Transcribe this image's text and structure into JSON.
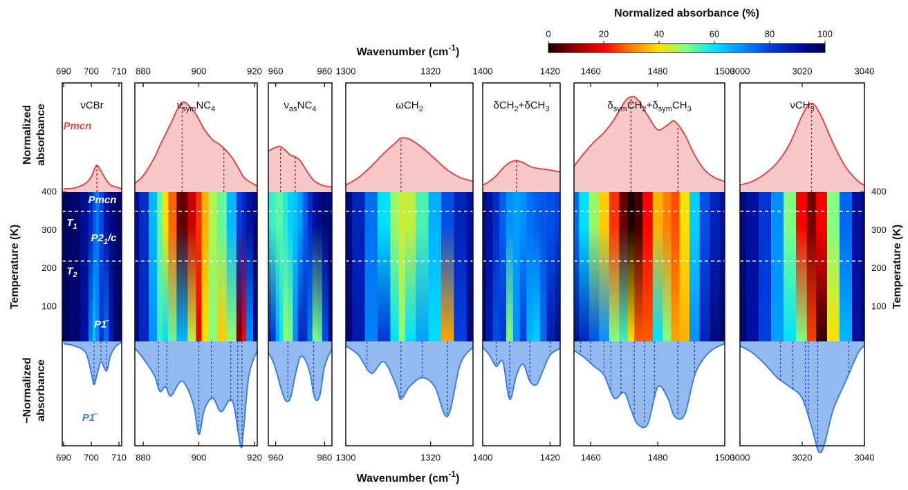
{
  "chart_data": {
    "type": "spectral-heatmap",
    "x_title": [
      "Wavenumber (cm",
      "-1",
      ")"
    ],
    "y_title": "Temperature (K)",
    "top_ylabel": [
      "Normalized",
      "absorbance"
    ],
    "bottom_ylabel": [
      "−Normalized",
      "absorbance"
    ],
    "ylim": [
      10,
      400
    ],
    "yticks": [
      100,
      200,
      300,
      400
    ],
    "transitions": [
      350,
      220
    ],
    "top_ylim": [
      0,
      100
    ],
    "bottom_ylim": [
      -100,
      0
    ],
    "top_color": "#e04848",
    "bottom_color": "#3b7fe0",
    "top_phase": "Pmcn",
    "bottom_phase": "P1̄",
    "heatmap_labels": [
      [
        "Pmcn"
      ],
      [
        "T",
        "1"
      ],
      [
        "P2",
        "1",
        "/c"
      ],
      [
        "T",
        "2"
      ],
      [
        "P1̄"
      ]
    ],
    "colorbar": {
      "title": "Normalized absorbance (%)",
      "lim": [
        0,
        100
      ],
      "ticks": [
        0,
        20,
        40,
        60,
        80,
        100
      ],
      "colors": [
        "#1a0000",
        "#990000",
        "#ff0000",
        "#ff8000",
        "#ffe000",
        "#80ff80",
        "#00e0ff",
        "#0090ff",
        "#0040e0",
        "#0010a0",
        "#000050"
      ]
    },
    "panels": [
      {
        "label": [
          "νCBr"
        ],
        "xlim": [
          689.5,
          711
        ],
        "xticks": [
          690,
          700,
          710
        ],
        "x": [
          690,
          694,
          698,
          700,
          701,
          702,
          703.5,
          705.5,
          707,
          709,
          711
        ],
        "top": [
          2,
          3,
          8,
          15,
          22,
          27,
          21,
          11,
          6,
          4,
          2
        ],
        "bottom": [
          -2,
          -4,
          -10,
          -28,
          -38,
          -30,
          -18,
          -26,
          -12,
          -4,
          -1
        ],
        "top_peaks": [
          702
        ],
        "bottom_peaks": [
          701,
          703.5,
          705.5
        ]
      },
      {
        "label": [
          "ν",
          "sym",
          "NC",
          "4"
        ],
        "xlim": [
          877,
          921
        ],
        "xticks": [
          880,
          900,
          920
        ],
        "x": [
          877,
          880,
          884,
          886,
          888,
          890,
          894,
          898,
          900,
          902,
          905,
          908,
          912,
          915,
          916,
          918,
          921
        ],
        "top": [
          8,
          16,
          35,
          48,
          60,
          72,
          94,
          85,
          76,
          65,
          54,
          48,
          35,
          20,
          15,
          10,
          5
        ],
        "bottom": [
          -6,
          -15,
          -30,
          -44,
          -40,
          -48,
          -35,
          -55,
          -82,
          -60,
          -50,
          -62,
          -52,
          -92,
          -80,
          -30,
          -8
        ],
        "top_peaks": [
          894,
          909
        ],
        "bottom_peaks": [
          885.5,
          888.5,
          900,
          904.5,
          911.5,
          914,
          915.5
        ]
      },
      {
        "label": [
          "ν",
          "as",
          "NC",
          "4"
        ],
        "xlim": [
          957,
          983
        ],
        "xticks": [
          960,
          980
        ],
        "x": [
          957,
          959,
          961,
          962,
          964,
          966,
          968,
          970,
          972,
          974,
          976,
          978,
          980,
          983
        ],
        "top": [
          42,
          45,
          47,
          47,
          43,
          38,
          36,
          32,
          24,
          16,
          10,
          7,
          5,
          4
        ],
        "bottom": [
          -10,
          -18,
          -32,
          -40,
          -52,
          -50,
          -30,
          -14,
          -16,
          -28,
          -50,
          -48,
          -22,
          -6
        ],
        "top_peaks": [
          962,
          968
        ],
        "bottom_peaks": [
          965,
          975.5
        ]
      },
      {
        "label": [
          "ωCH",
          "2"
        ],
        "xlim": [
          1300,
          1330
        ],
        "xticks": [
          1300,
          1320
        ],
        "x": [
          1300,
          1303,
          1306,
          1309,
          1312,
          1313,
          1315,
          1318,
          1321,
          1324,
          1327,
          1330
        ],
        "top": [
          6,
          14,
          26,
          40,
          52,
          56,
          55,
          46,
          34,
          22,
          14,
          10
        ],
        "bottom": [
          -4,
          -12,
          -28,
          -18,
          -40,
          -51,
          -40,
          -32,
          -40,
          -66,
          -20,
          -5
        ],
        "top_peaks": [
          1313
        ],
        "bottom_peaks": [
          1305,
          1313,
          1318,
          1324
        ]
      },
      {
        "label": [
          "δCH",
          "2",
          "+δCH",
          "3"
        ],
        "xlim": [
          1400,
          1423
        ],
        "xticks": [
          1400,
          1420
        ],
        "x": [
          1400,
          1402,
          1404,
          1406,
          1408,
          1410,
          1412,
          1414,
          1416,
          1418,
          1420,
          1423
        ],
        "top": [
          6,
          10,
          16,
          24,
          30,
          32,
          30,
          26,
          24,
          23,
          22,
          20
        ],
        "bottom": [
          -5,
          -12,
          -22,
          -18,
          -51,
          -30,
          -20,
          -35,
          -38,
          -25,
          -12,
          -6
        ],
        "top_peaks": [
          1410
        ],
        "bottom_peaks": [
          1404,
          1408,
          1414,
          1420
        ]
      },
      {
        "label": [
          "δ",
          "sym",
          "CH",
          "2",
          "+δ",
          "sym",
          "CH",
          "3"
        ],
        "xlim": [
          1455,
          1500
        ],
        "xticks": [
          1460,
          1480,
          1500
        ],
        "x": [
          1455,
          1458,
          1461,
          1464,
          1467,
          1470,
          1472,
          1474,
          1477,
          1480,
          1483,
          1485,
          1488,
          1491,
          1494,
          1497,
          1500
        ],
        "top": [
          26,
          40,
          52,
          62,
          76,
          94,
          100,
          97,
          80,
          65,
          70,
          74,
          60,
          38,
          22,
          14,
          10
        ],
        "bottom": [
          -8,
          -14,
          -22,
          -30,
          -50,
          -45,
          -60,
          -73,
          -73,
          -40,
          -50,
          -66,
          -65,
          -30,
          -14,
          -6,
          -2
        ],
        "top_peaks": [
          1472,
          1486
        ],
        "bottom_peaks": [
          1457,
          1460,
          1464,
          1466,
          1469,
          1473,
          1476,
          1479,
          1486,
          1491
        ]
      },
      {
        "label": [
          "νCH",
          "3"
        ],
        "xlim": [
          3000,
          3040
        ],
        "xticks": [
          3000,
          3020,
          3040
        ],
        "x": [
          3000,
          3004,
          3008,
          3012,
          3016,
          3020,
          3023,
          3026,
          3030,
          3034,
          3038,
          3040
        ],
        "top": [
          6,
          10,
          18,
          30,
          50,
          80,
          93,
          80,
          50,
          25,
          10,
          6
        ],
        "bottom": [
          -4,
          -10,
          -20,
          -32,
          -40,
          -50,
          -75,
          -98,
          -60,
          -35,
          -10,
          -4
        ],
        "top_peaks": [
          3023
        ],
        "bottom_peaks": [
          3013,
          3017,
          3021,
          3022,
          3025,
          3035
        ]
      }
    ]
  }
}
